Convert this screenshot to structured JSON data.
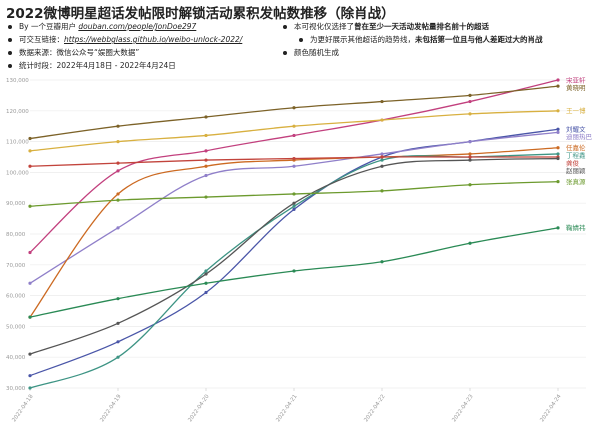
{
  "header": {
    "title": "2022微博明星超话发帖限时解锁活动累积发帖数推移（除肖战）"
  },
  "notes": {
    "left": [
      {
        "prefix": "By 一个豆瓣用户 ",
        "link": "douban.com/people/JonDoe297"
      },
      {
        "prefix": "可交互链接：",
        "link": "https://webbglass.github.io/weibo-unlock-2022/"
      },
      {
        "prefix": "数据来源：微信公众号“娱圈大数据”",
        "link": ""
      },
      {
        "prefix": "统计时段：2022年4月18日 - 2022年4月24日",
        "link": ""
      }
    ],
    "right": [
      {
        "text": "本可视化仅选择了",
        "bold": "曾在至少一天活动发帖量排名前十的超话"
      },
      {
        "text": "为更好展示其他超话的趋势线，",
        "bold": "未包括第一位且与他人差距过大的肖战"
      },
      {
        "text": "颜色随机生成",
        "bold": ""
      }
    ]
  },
  "chart_data": {
    "type": "line",
    "x": [
      "2022-04-18",
      "2022-04-19",
      "2022-04-20",
      "2022-04-21",
      "2022-04-22",
      "2022-04-23",
      "2022-04-24"
    ],
    "ylim": [
      30000,
      130000
    ],
    "yticks": [
      30000,
      40000,
      50000,
      60000,
      70000,
      80000,
      90000,
      100000,
      110000,
      120000,
      130000
    ],
    "ytick_labels": [
      "30,000",
      "40,000",
      "50,000",
      "60,000",
      "70,000",
      "80,000",
      "90,000",
      "100,000",
      "110,000",
      "120,000",
      "130,000"
    ],
    "series": [
      {
        "name": "宋亚轩",
        "color": "#c2407e",
        "values": [
          74000,
          100500,
          107000,
          112000,
          117000,
          123000,
          130000
        ]
      },
      {
        "name": "黄晓明",
        "color": "#7c6228",
        "values": [
          111000,
          115000,
          118000,
          121000,
          123000,
          125000,
          128000
        ]
      },
      {
        "name": "王一博",
        "color": "#d8b040",
        "values": [
          107000,
          110000,
          112000,
          115000,
          117000,
          119000,
          120000
        ]
      },
      {
        "name": "刘耀文",
        "color": "#4a56a8",
        "values": [
          34000,
          45000,
          61000,
          88000,
          105000,
          110000,
          114000
        ]
      },
      {
        "name": "迪丽热巴",
        "color": "#8f7fc9",
        "values": [
          64000,
          82000,
          99000,
          102000,
          106000,
          110000,
          113000
        ]
      },
      {
        "name": "任嘉伦",
        "color": "#cc6a22",
        "values": [
          53000,
          93000,
          102000,
          104000,
          105000,
          106000,
          108000
        ]
      },
      {
        "name": "丁程鑫",
        "color": "#3d9484",
        "values": [
          30000,
          40000,
          68000,
          89000,
          104000,
          105000,
          106000
        ]
      },
      {
        "name": "龚俊",
        "color": "#c2443c",
        "values": [
          102000,
          103000,
          104000,
          104500,
          105000,
          105000,
          105000
        ]
      },
      {
        "name": "赵丽颖",
        "color": "#555555",
        "values": [
          41000,
          51000,
          67000,
          90000,
          102000,
          104000,
          104500
        ]
      },
      {
        "name": "张真源",
        "color": "#6c9a2e",
        "values": [
          89000,
          91000,
          92000,
          93000,
          94000,
          96000,
          97000
        ]
      },
      {
        "name": "鞠婧祎",
        "color": "#2a8a55",
        "values": [
          53000,
          59000,
          64000,
          68000,
          71000,
          77000,
          82000
        ]
      }
    ],
    "labels": [
      {
        "text": "宋亚轩",
        "color": "#c2407e"
      },
      {
        "text": "黄晓明",
        "color": "#7c6228"
      },
      {
        "text": "王一博",
        "color": "#d8b040"
      },
      {
        "text": "刘耀文",
        "color": "#4a56a8"
      },
      {
        "text": "迪丽热巴",
        "color": "#8f7fc9"
      },
      {
        "text": "任嘉伦",
        "color": "#cc6a22"
      },
      {
        "text": "丁程鑫",
        "color": "#3d9484"
      },
      {
        "text": "龚俊",
        "color": "#c2443c"
      },
      {
        "text": "赵丽颖",
        "color": "#555555"
      },
      {
        "text": "张真源",
        "color": "#6c9a2e"
      },
      {
        "text": "鞠婧祎",
        "color": "#2a8a55"
      }
    ],
    "grid": "horizontal"
  }
}
